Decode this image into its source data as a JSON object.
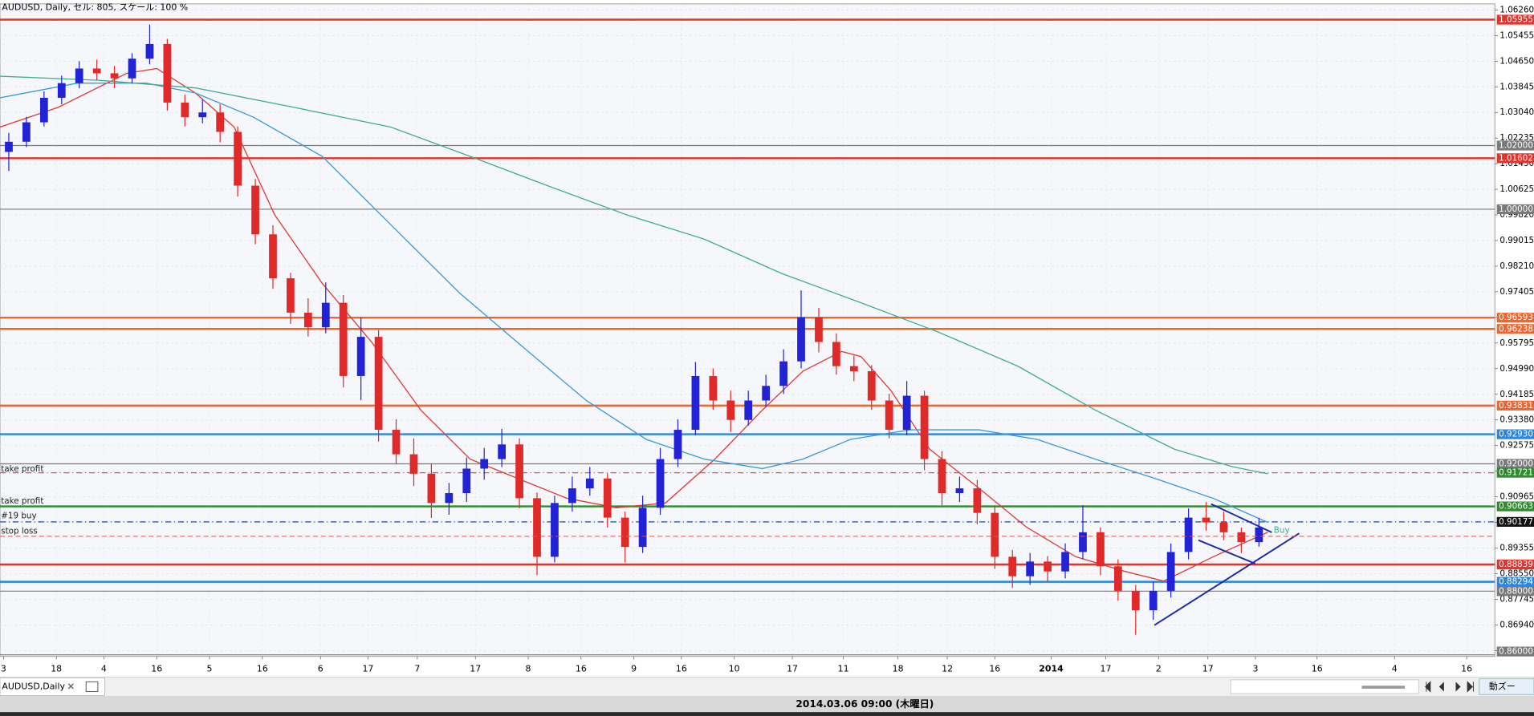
{
  "chart_data": {
    "type": "candlestick",
    "title": "AUDUSD, Daily, セル: 805, スケール: 100 %",
    "up_color": "#2323d6",
    "down_color": "#e02a2a",
    "grid": true,
    "xlim": [
      0,
      84.9
    ],
    "ylim": [
      0.8595,
      1.0645
    ],
    "xticks": [
      {
        "value": 0.2,
        "label": "3"
      },
      {
        "value": 3.2,
        "label": "18"
      },
      {
        "value": 5.9,
        "label": "4"
      },
      {
        "value": 8.9,
        "label": "16"
      },
      {
        "value": 11.9,
        "label": "5"
      },
      {
        "value": 14.9,
        "label": "16"
      },
      {
        "value": 18.2,
        "label": "6"
      },
      {
        "value": 20.9,
        "label": "17"
      },
      {
        "value": 23.7,
        "label": "7"
      },
      {
        "value": 27,
        "label": "17"
      },
      {
        "value": 30,
        "label": "8"
      },
      {
        "value": 33,
        "label": "16"
      },
      {
        "value": 36,
        "label": "9"
      },
      {
        "value": 38.7,
        "label": "16"
      },
      {
        "value": 41.7,
        "label": "10"
      },
      {
        "value": 45,
        "label": "17"
      },
      {
        "value": 47.9,
        "label": "11"
      },
      {
        "value": 51,
        "label": "18"
      },
      {
        "value": 53.8,
        "label": "12"
      },
      {
        "value": 56.5,
        "label": "16"
      },
      {
        "value": 59.7,
        "label": "2014"
      },
      {
        "value": 62.8,
        "label": "17"
      },
      {
        "value": 65.8,
        "label": "2"
      },
      {
        "value": 68.6,
        "label": "17"
      },
      {
        "value": 71.3,
        "label": "3"
      },
      {
        "value": 74.8,
        "label": "16"
      },
      {
        "value": 79.2,
        "label": "4"
      },
      {
        "value": 83.3,
        "label": "16"
      }
    ],
    "yticks": [
      {
        "value": 1.0626,
        "label": "1.06260"
      },
      1.05455,
      {
        "value": 1.0465,
        "label": "1.04650"
      },
      1.03845,
      {
        "value": 1.0304,
        "label": "1.03040"
      },
      1.02235,
      {
        "value": 1.0143,
        "label": "1.01430"
      },
      1.00625,
      {
        "value": 0.9982,
        "label": "0.99820"
      },
      0.99015,
      {
        "value": 0.9821,
        "label": "0.98210"
      },
      0.97405,
      {
        "value": 0.966,
        "label": "0.96600"
      },
      0.95795,
      {
        "value": 0.9499,
        "label": "0.94990"
      },
      0.94185,
      {
        "value": 0.9338,
        "label": "0.93380"
      },
      0.92575,
      {
        "value": 0.9177,
        "label": "0.91770"
      },
      0.90965,
      {
        "value": 0.9016,
        "label": "0.90160"
      },
      0.89355,
      {
        "value": 0.8855,
        "label": "0.88550"
      },
      0.87745,
      {
        "value": 0.8694,
        "label": "0.86940"
      },
      0.86135
    ],
    "candles": [
      [
        1.018,
        1.024,
        1.012,
        1.0212
      ],
      [
        1.0212,
        1.029,
        1.0195,
        1.0273
      ],
      [
        1.0273,
        1.037,
        1.026,
        1.035
      ],
      [
        1.035,
        1.042,
        1.033,
        1.0396
      ],
      [
        1.0396,
        1.0465,
        1.038,
        1.0442
      ],
      [
        1.0442,
        1.047,
        1.0405,
        1.0427
      ],
      [
        1.0427,
        1.045,
        1.038,
        1.0411
      ],
      [
        1.0411,
        1.049,
        1.0395,
        1.0473
      ],
      [
        1.0473,
        1.058,
        1.0455,
        1.0519
      ],
      [
        1.0519,
        1.0535,
        1.031,
        1.0335
      ],
      [
        1.0335,
        1.036,
        1.026,
        1.0289
      ],
      [
        1.0289,
        1.0345,
        1.027,
        1.0304
      ],
      [
        1.0304,
        1.033,
        1.021,
        1.0243
      ],
      [
        1.0243,
        1.026,
        1.004,
        1.0074
      ],
      [
        1.0074,
        1.0095,
        0.989,
        0.9921
      ],
      [
        0.9921,
        0.995,
        0.975,
        0.9783
      ],
      [
        0.9783,
        0.98,
        0.964,
        0.9675
      ],
      [
        0.9675,
        0.972,
        0.96,
        0.9629
      ],
      [
        0.9629,
        0.977,
        0.961,
        0.9706
      ],
      [
        0.9706,
        0.973,
        0.944,
        0.9476
      ],
      [
        0.9476,
        0.966,
        0.94,
        0.9599
      ],
      [
        0.9599,
        0.962,
        0.927,
        0.9307
      ],
      [
        0.9307,
        0.934,
        0.92,
        0.923
      ],
      [
        0.923,
        0.928,
        0.913,
        0.9169
      ],
      [
        0.9169,
        0.92,
        0.903,
        0.9077
      ],
      [
        0.9077,
        0.914,
        0.904,
        0.9108
      ],
      [
        0.9108,
        0.922,
        0.908,
        0.9185
      ],
      [
        0.9185,
        0.925,
        0.915,
        0.9215
      ],
      [
        0.9215,
        0.931,
        0.919,
        0.9261
      ],
      [
        0.9261,
        0.928,
        0.906,
        0.9092
      ],
      [
        0.9092,
        0.911,
        0.885,
        0.8908
      ],
      [
        0.8908,
        0.91,
        0.889,
        0.9077
      ],
      [
        0.9077,
        0.916,
        0.905,
        0.9123
      ],
      [
        0.9123,
        0.919,
        0.91,
        0.9154
      ],
      [
        0.9154,
        0.917,
        0.9,
        0.9031
      ],
      [
        0.9031,
        0.905,
        0.889,
        0.8939
      ],
      [
        0.8939,
        0.91,
        0.892,
        0.9062
      ],
      [
        0.9062,
        0.925,
        0.904,
        0.9215
      ],
      [
        0.9215,
        0.934,
        0.919,
        0.9307
      ],
      [
        0.9307,
        0.952,
        0.929,
        0.9476
      ],
      [
        0.9476,
        0.95,
        0.937,
        0.9399
      ],
      [
        0.9399,
        0.943,
        0.93,
        0.9338
      ],
      [
        0.9338,
        0.943,
        0.932,
        0.9399
      ],
      [
        0.9399,
        0.948,
        0.938,
        0.9445
      ],
      [
        0.9445,
        0.956,
        0.942,
        0.9522
      ],
      [
        0.9522,
        0.9745,
        0.95,
        0.966
      ],
      [
        0.966,
        0.969,
        0.955,
        0.9583
      ],
      [
        0.9583,
        0.961,
        0.948,
        0.9507
      ],
      [
        0.9507,
        0.954,
        0.946,
        0.9491
      ],
      [
        0.9491,
        0.951,
        0.937,
        0.9399
      ],
      [
        0.9399,
        0.942,
        0.928,
        0.9307
      ],
      [
        0.9307,
        0.946,
        0.929,
        0.9414
      ],
      [
        0.9414,
        0.943,
        0.918,
        0.9215
      ],
      [
        0.9215,
        0.924,
        0.907,
        0.9108
      ],
      [
        0.9108,
        0.916,
        0.908,
        0.9123
      ],
      [
        0.9123,
        0.915,
        0.901,
        0.9046
      ],
      [
        0.9046,
        0.907,
        0.887,
        0.8908
      ],
      [
        0.8908,
        0.893,
        0.881,
        0.8847
      ],
      [
        0.8847,
        0.892,
        0.882,
        0.8893
      ],
      [
        0.8893,
        0.891,
        0.883,
        0.8862
      ],
      [
        0.8862,
        0.895,
        0.884,
        0.8923
      ],
      [
        0.8923,
        0.907,
        0.89,
        0.8985
      ],
      [
        0.8985,
        0.9,
        0.885,
        0.8878
      ],
      [
        0.8878,
        0.89,
        0.877,
        0.8801
      ],
      [
        0.8801,
        0.882,
        0.8663,
        0.874
      ],
      [
        0.874,
        0.883,
        0.871,
        0.8801
      ],
      [
        0.8801,
        0.895,
        0.878,
        0.8923
      ],
      [
        0.8923,
        0.906,
        0.89,
        0.9031
      ],
      [
        0.9031,
        0.908,
        0.899,
        0.9016
      ],
      [
        0.9016,
        0.905,
        0.896,
        0.8985
      ],
      [
        0.8985,
        0.9,
        0.892,
        0.8954
      ],
      [
        0.8954,
        0.903,
        0.894,
        0.9
      ]
    ],
    "series": [
      {
        "color": "#e03a3a",
        "x": [
          0,
          3.3,
          7.2,
          8.9,
          11.1,
          13.3,
          15.6,
          18.3,
          21.1,
          23.9,
          26.7,
          29.4,
          32.2,
          35,
          37.8,
          40.6,
          43.3,
          45.6,
          47.8,
          48.9,
          50.6,
          52.8,
          55.6,
          58.3,
          61.1,
          63.9,
          66.1,
          68.9,
          72
        ],
        "values": [
          1.0258,
          1.032,
          1.0427,
          1.0442,
          1.0365,
          1.0258,
          0.9982,
          0.9767,
          0.9583,
          0.9369,
          0.9215,
          0.9154,
          0.9092,
          0.9062,
          0.9077,
          0.9215,
          0.9369,
          0.9491,
          0.9553,
          0.9537,
          0.943,
          0.9246,
          0.9123,
          0.9001,
          0.8908,
          0.8862,
          0.8832,
          0.8908,
          0.8985
        ]
      },
      {
        "color": "#3a9ad9",
        "x": [
          0,
          4.4,
          8.3,
          11.1,
          14.4,
          18.3,
          22.2,
          26.1,
          30,
          33.3,
          36.7,
          40,
          43.3,
          45.6,
          48.3,
          51.7,
          55.6,
          58.9,
          62.2,
          65.6,
          68.9,
          72
        ],
        "values": [
          1.035,
          1.0396,
          1.0396,
          1.0365,
          1.0289,
          1.0166,
          0.9951,
          0.9737,
          0.9553,
          0.9399,
          0.9277,
          0.9215,
          0.9185,
          0.9215,
          0.9277,
          0.9307,
          0.9307,
          0.9277,
          0.9215,
          0.9154,
          0.9092,
          0.9016
        ]
      },
      {
        "color": "#3fae8f",
        "x": [
          0,
          5.6,
          11.1,
          16.7,
          22.2,
          26.7,
          31.1,
          35.6,
          40,
          44.4,
          48.9,
          53.3,
          57.8,
          62.2,
          66.7,
          70,
          72
        ],
        "values": [
          1.0418,
          1.0405,
          1.0381,
          1.032,
          1.0258,
          1.0166,
          1.0074,
          0.9982,
          0.9906,
          0.9798,
          0.9706,
          0.9614,
          0.9507,
          0.9369,
          0.9246,
          0.9191,
          0.9169
        ]
      }
    ],
    "levels": [
      {
        "value": 1.05955,
        "color": "#e8312a",
        "width": 2
      },
      {
        "value": 1.02,
        "label": "1.02000",
        "color": "#7a7a7a",
        "width": 1
      },
      {
        "value": 1.01602,
        "color": "#e8312a",
        "width": 2
      },
      {
        "value": 1.0,
        "label": "1.00000",
        "color": "#7a7a7a",
        "width": 1
      },
      {
        "value": 0.96593,
        "color": "#f0642e",
        "width": 2
      },
      {
        "value": 0.96238,
        "color": "#f0642e",
        "width": 2
      },
      {
        "value": 0.93831,
        "color": "#f0642e",
        "width": 2
      },
      {
        "value": 0.9293,
        "label": "0.92930",
        "color": "#2a86e0",
        "width": 2
      },
      {
        "value": 0.92,
        "label": "0.92000",
        "color": "#7a7a7a",
        "width": 1
      },
      {
        "value": 0.91721,
        "color": "#d9534f",
        "width": 1,
        "dashed": true,
        "label_color": "#2e8b2e"
      },
      {
        "value": 0.90663,
        "color": "#2e8b2e",
        "width": 2
      },
      {
        "value": 0.90177,
        "color": "#1f4fa0",
        "width": 1,
        "dashed": true,
        "label_color": "#111111"
      },
      {
        "value": 0.88839,
        "color": "#e8312a",
        "width": 2
      },
      {
        "value": 0.88294,
        "color": "#2a86e0",
        "width": 2
      },
      {
        "value": 0.88,
        "label": "0.88000",
        "color": "#7a7a7a",
        "width": 1
      },
      {
        "value": 0.86,
        "label": "0.86000",
        "color": "#7a7a7a",
        "width": 1
      }
    ],
    "annotations": [
      "take profit",
      "take profit",
      "#19 buy",
      "stop loss",
      "Buy"
    ]
  },
  "ui": {
    "tab": "AUDUSD,Daily",
    "status": "2014.03.06 09:00 (木曜日)",
    "zoom": "動ズー"
  }
}
